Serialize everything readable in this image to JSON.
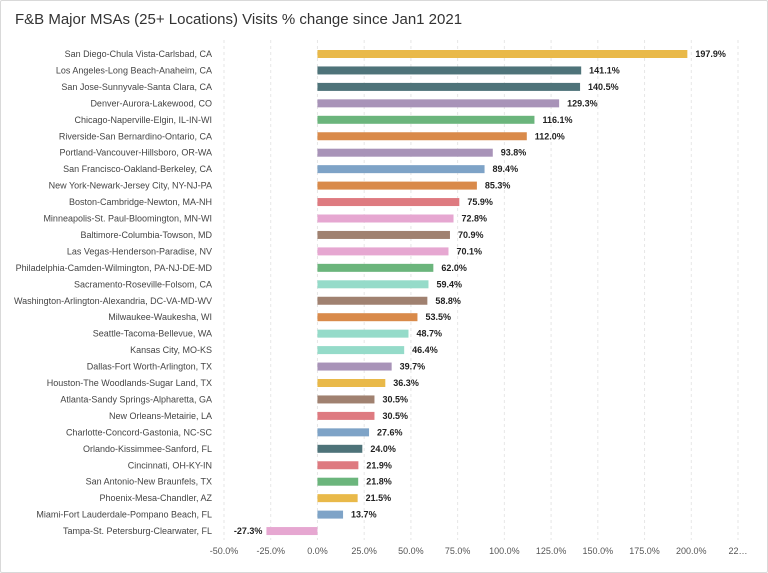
{
  "chart_data": {
    "type": "bar",
    "orientation": "horizontal",
    "title": "F&B Major MSAs (25+ Locations) Visits % change since Jan1 2021",
    "xlabel": "",
    "ylabel": "",
    "xlim": [
      -50,
      225
    ],
    "x_ticks": [
      "-50.0%",
      "-25.0%",
      "0.0%",
      "25.0%",
      "50.0%",
      "75.0%",
      "100.0%",
      "125.0%",
      "150.0%",
      "175.0%",
      "200.0%",
      "22…"
    ],
    "x_tick_values": [
      -50,
      -25,
      0,
      25,
      50,
      75,
      100,
      125,
      150,
      175,
      200,
      225
    ],
    "grid": true,
    "legend": "none",
    "categories": [
      "San Diego-Chula Vista-Carlsbad, CA",
      "Los Angeles-Long Beach-Anaheim, CA",
      "San Jose-Sunnyvale-Santa Clara, CA",
      "Denver-Aurora-Lakewood, CO",
      "Chicago-Naperville-Elgin, IL-IN-WI",
      "Riverside-San Bernardino-Ontario, CA",
      "Portland-Vancouver-Hillsboro, OR-WA",
      "San Francisco-Oakland-Berkeley, CA",
      "New York-Newark-Jersey City, NY-NJ-PA",
      "Boston-Cambridge-Newton, MA-NH",
      "Minneapolis-St. Paul-Bloomington, MN-WI",
      "Baltimore-Columbia-Towson, MD",
      "Las Vegas-Henderson-Paradise, NV",
      "Philadelphia-Camden-Wilmington, PA-NJ-DE-MD",
      "Sacramento-Roseville-Folsom, CA",
      "Washington-Arlington-Alexandria, DC-VA-MD-WV",
      "Milwaukee-Waukesha, WI",
      "Seattle-Tacoma-Bellevue, WA",
      "Kansas City, MO-KS",
      "Dallas-Fort Worth-Arlington, TX",
      "Houston-The Woodlands-Sugar Land, TX",
      "Atlanta-Sandy Springs-Alpharetta, GA",
      "New Orleans-Metairie, LA",
      "Charlotte-Concord-Gastonia, NC-SC",
      "Orlando-Kissimmee-Sanford, FL",
      "Cincinnati, OH-KY-IN",
      "San Antonio-New Braunfels, TX",
      "Phoenix-Mesa-Chandler, AZ",
      "Miami-Fort Lauderdale-Pompano Beach, FL",
      "Tampa-St. Petersburg-Clearwater, FL"
    ],
    "values": [
      197.9,
      141.1,
      140.5,
      129.3,
      116.1,
      112.0,
      93.8,
      89.4,
      85.3,
      75.9,
      72.8,
      70.9,
      70.1,
      62.0,
      59.4,
      58.8,
      53.5,
      48.7,
      46.4,
      39.7,
      36.3,
      30.5,
      30.5,
      27.6,
      24.0,
      21.9,
      21.8,
      21.5,
      13.7,
      -27.3
    ],
    "value_labels": [
      "197.9%",
      "141.1%",
      "140.5%",
      "129.3%",
      "116.1%",
      "112.0%",
      "93.8%",
      "89.4%",
      "85.3%",
      "75.9%",
      "72.8%",
      "70.9%",
      "70.1%",
      "62.0%",
      "59.4%",
      "58.8%",
      "53.5%",
      "48.7%",
      "46.4%",
      "39.7%",
      "36.3%",
      "30.5%",
      "30.5%",
      "27.6%",
      "24.0%",
      "21.9%",
      "21.8%",
      "21.5%",
      "13.7%",
      "-27.3%"
    ],
    "colors": [
      "#e9b949",
      "#4e7379",
      "#4e7379",
      "#a893b8",
      "#6bb57c",
      "#d98a4a",
      "#a893b8",
      "#7ea3c7",
      "#d98a4a",
      "#de7a80",
      "#e6a7d1",
      "#a08170",
      "#e6a7d1",
      "#6bb57c",
      "#95dbc9",
      "#a08170",
      "#d98a4a",
      "#95dbc9",
      "#95dbc9",
      "#a893b8",
      "#e9b949",
      "#a08170",
      "#de7a80",
      "#7ea3c7",
      "#4e7379",
      "#de7a80",
      "#6bb57c",
      "#e9b949",
      "#7ea3c7",
      "#e6a7d1"
    ]
  }
}
